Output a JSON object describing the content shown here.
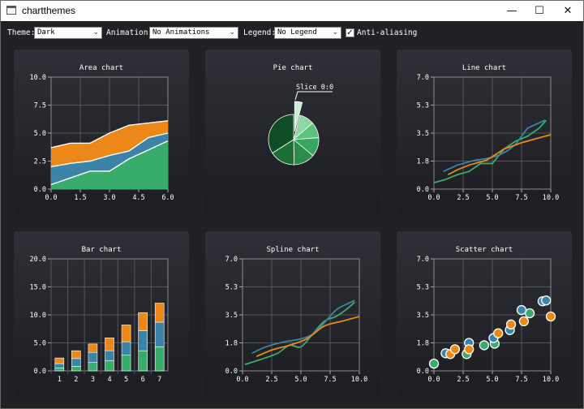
{
  "window": {
    "title": "chartthemes",
    "minimize": "—",
    "maximize": "☐",
    "close": "✕"
  },
  "toolbar": {
    "theme_label": "Theme:",
    "theme_value": "Dark",
    "animation_label": "Animation:",
    "animation_value": "No Animations",
    "legend_label": "Legend:",
    "legend_value": "No Legend",
    "antialias_label": "Anti-aliasing",
    "antialias_checked": true
  },
  "colors": {
    "green": "#38ad6b",
    "blue": "#3c84a7",
    "orange": "#eb8817",
    "pie_green": [
      "#0f4d25",
      "#1f6e35",
      "#2e8c4a",
      "#3aa55c",
      "#5cc27a",
      "#8ed6a2",
      "#c8efd3"
    ]
  },
  "chart_data": [
    {
      "type": "area",
      "title": "Area chart",
      "x": [
        0,
        1,
        2,
        3,
        4,
        5,
        6
      ],
      "series": [
        {
          "name": "green",
          "values": [
            0.4,
            1.0,
            1.6,
            1.6,
            2.7,
            3.5,
            4.3
          ]
        },
        {
          "name": "blue",
          "values": [
            2.0,
            2.3,
            2.5,
            3.0,
            3.4,
            4.6,
            5.0
          ]
        },
        {
          "name": "orange",
          "values": [
            3.7,
            4.1,
            4.1,
            5.0,
            5.7,
            5.9,
            6.1
          ]
        }
      ],
      "xlim": [
        0,
        6
      ],
      "ylim": [
        0,
        10
      ],
      "xticks": [
        "0.0",
        "1.5",
        "3.0",
        "4.5",
        "6.0"
      ],
      "yticks": [
        "0.0",
        "2.5",
        "5.0",
        "7.5",
        "10.0"
      ]
    },
    {
      "type": "pie",
      "title": "Pie chart",
      "slices": [
        0.3,
        0.7,
        0.75,
        0.9,
        1.0,
        1.2,
        2.5
      ],
      "exploded_label": "Slice 0:0"
    },
    {
      "type": "line",
      "title": "Line chart",
      "series": [
        {
          "name": "green",
          "x": [
            0.0,
            1.0,
            2.0,
            3.0,
            4.0,
            5.0,
            6.0,
            7.0,
            8.0,
            9.0,
            9.6
          ],
          "y": [
            0.4,
            0.6,
            0.9,
            1.1,
            1.6,
            1.6,
            2.5,
            3.0,
            3.3,
            3.8,
            4.3
          ]
        },
        {
          "name": "blue",
          "x": [
            0.8,
            2.0,
            3.5,
            4.5,
            5.5,
            6.3,
            7.0,
            8.0,
            9.5
          ],
          "y": [
            1.1,
            1.5,
            1.8,
            1.9,
            2.1,
            2.4,
            2.8,
            3.8,
            4.3
          ]
        },
        {
          "name": "orange",
          "x": [
            1.2,
            2.0,
            3.0,
            4.5,
            6.0,
            7.5,
            9.0,
            10.0
          ],
          "y": [
            0.9,
            1.2,
            1.5,
            1.8,
            2.5,
            2.9,
            3.2,
            3.4
          ]
        }
      ],
      "xlim": [
        0,
        10
      ],
      "ylim": [
        0,
        7
      ],
      "xticks": [
        "0.0",
        "2.5",
        "5.0",
        "7.5",
        "10.0"
      ],
      "yticks": [
        "0.0",
        "1.8",
        "3.5",
        "5.3",
        "7.0"
      ]
    },
    {
      "type": "bar",
      "title": "Bar chart",
      "categories": [
        "1",
        "2",
        "3",
        "4",
        "5",
        "6",
        "7"
      ],
      "series": [
        {
          "name": "green",
          "values": [
            0.5,
            0.8,
            1.5,
            1.8,
            2.8,
            3.6,
            4.3
          ]
        },
        {
          "name": "blue",
          "values": [
            0.8,
            1.4,
            1.8,
            1.8,
            2.4,
            3.6,
            4.4
          ]
        },
        {
          "name": "orange",
          "values": [
            1.0,
            1.4,
            1.5,
            2.3,
            3.0,
            3.2,
            3.4
          ]
        }
      ],
      "ylim": [
        0,
        20
      ],
      "yticks": [
        "0.0",
        "5.0",
        "10.0",
        "15.0",
        "20.0"
      ]
    },
    {
      "type": "spline",
      "title": "Spline chart",
      "series": [
        {
          "name": "green",
          "x": [
            0.2,
            1.5,
            3.0,
            4.0,
            5.0,
            6.0,
            7.0,
            8.0,
            9.0,
            9.6
          ],
          "y": [
            0.4,
            0.7,
            1.1,
            1.6,
            1.5,
            2.3,
            3.1,
            3.4,
            3.9,
            4.3
          ]
        },
        {
          "name": "blue",
          "x": [
            0.8,
            2.0,
            3.5,
            5.0,
            6.0,
            7.0,
            8.0,
            9.0,
            9.6
          ],
          "y": [
            1.1,
            1.5,
            1.8,
            2.0,
            2.3,
            3.0,
            3.8,
            4.2,
            4.4
          ]
        },
        {
          "name": "orange",
          "x": [
            1.2,
            2.5,
            4.0,
            5.5,
            7.0,
            8.5,
            10.0
          ],
          "y": [
            0.9,
            1.3,
            1.6,
            2.0,
            2.8,
            3.1,
            3.4
          ]
        }
      ],
      "xlim": [
        0,
        10
      ],
      "ylim": [
        0,
        7
      ],
      "xticks": [
        "0.0",
        "2.5",
        "5.0",
        "7.5",
        "10.0"
      ],
      "yticks": [
        "0.0",
        "1.8",
        "3.5",
        "5.3",
        "7.0"
      ]
    },
    {
      "type": "scatter",
      "title": "Scatter chart",
      "series": [
        {
          "name": "green",
          "x": [
            0.0,
            2.8,
            4.3,
            5.2,
            8.2
          ],
          "y": [
            0.45,
            1.05,
            1.6,
            1.7,
            3.6
          ]
        },
        {
          "name": "blue",
          "x": [
            1.0,
            3.0,
            5.1,
            6.5,
            7.5,
            9.3,
            9.6
          ],
          "y": [
            1.1,
            1.75,
            2.05,
            2.55,
            3.8,
            4.35,
            4.4
          ]
        },
        {
          "name": "orange",
          "x": [
            1.4,
            1.8,
            3.0,
            5.5,
            6.6,
            7.7,
            10.0
          ],
          "y": [
            1.05,
            1.35,
            1.35,
            2.35,
            2.9,
            3.1,
            3.4
          ]
        }
      ],
      "xlim": [
        0,
        10
      ],
      "ylim": [
        0,
        7
      ],
      "xticks": [
        "0.0",
        "2.5",
        "5.0",
        "7.5",
        "10.0"
      ],
      "yticks": [
        "0.0",
        "1.8",
        "3.5",
        "5.3",
        "7.0"
      ]
    }
  ]
}
